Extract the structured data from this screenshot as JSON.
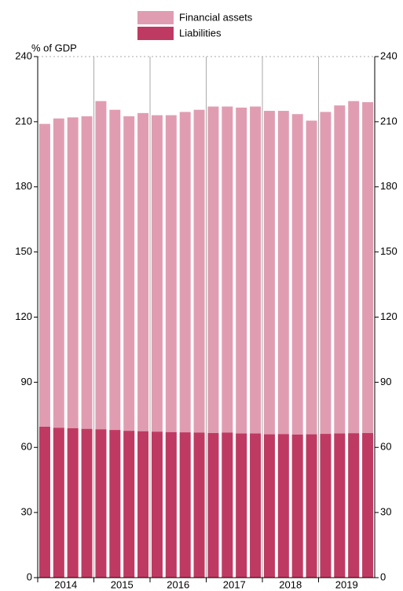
{
  "chart_data": {
    "type": "bar",
    "overlap": true,
    "y_label": "% of GDP",
    "x_groups": [
      "2014",
      "2015",
      "2016",
      "2017",
      "2018",
      "2019"
    ],
    "categories": [
      null,
      null,
      null,
      null,
      null,
      null,
      null,
      null,
      null,
      null,
      null,
      null,
      null,
      null,
      null,
      null,
      null,
      null,
      null,
      null,
      null,
      null,
      null,
      null
    ],
    "series": [
      {
        "name": "Financial assets",
        "color": "#e09db2",
        "values": [
          209,
          211.5,
          212,
          212.5,
          219.5,
          215.5,
          212.5,
          214,
          213,
          213,
          214.5,
          215.5,
          217,
          217,
          216.5,
          217,
          215,
          215,
          213.5,
          210.5,
          214.5,
          217.5,
          219.5,
          219
        ]
      },
      {
        "name": "Liabilities",
        "color": "#bf3a62",
        "values": [
          69.5,
          69,
          68.8,
          68.5,
          68.3,
          68,
          67.6,
          67.4,
          67.2,
          67,
          66.9,
          66.8,
          66.6,
          66.8,
          66.4,
          66.4,
          66,
          66.1,
          65.9,
          66,
          66.2,
          66.4,
          66.5,
          66.6
        ]
      }
    ],
    "ylim": [
      0,
      240
    ],
    "yticks": [
      0,
      30,
      60,
      90,
      120,
      150,
      180,
      210,
      240
    ],
    "y2lim": [
      0,
      240
    ],
    "y2ticks": [
      0,
      30,
      60,
      90,
      120,
      150,
      180,
      210,
      240
    ],
    "legend": "top"
  }
}
